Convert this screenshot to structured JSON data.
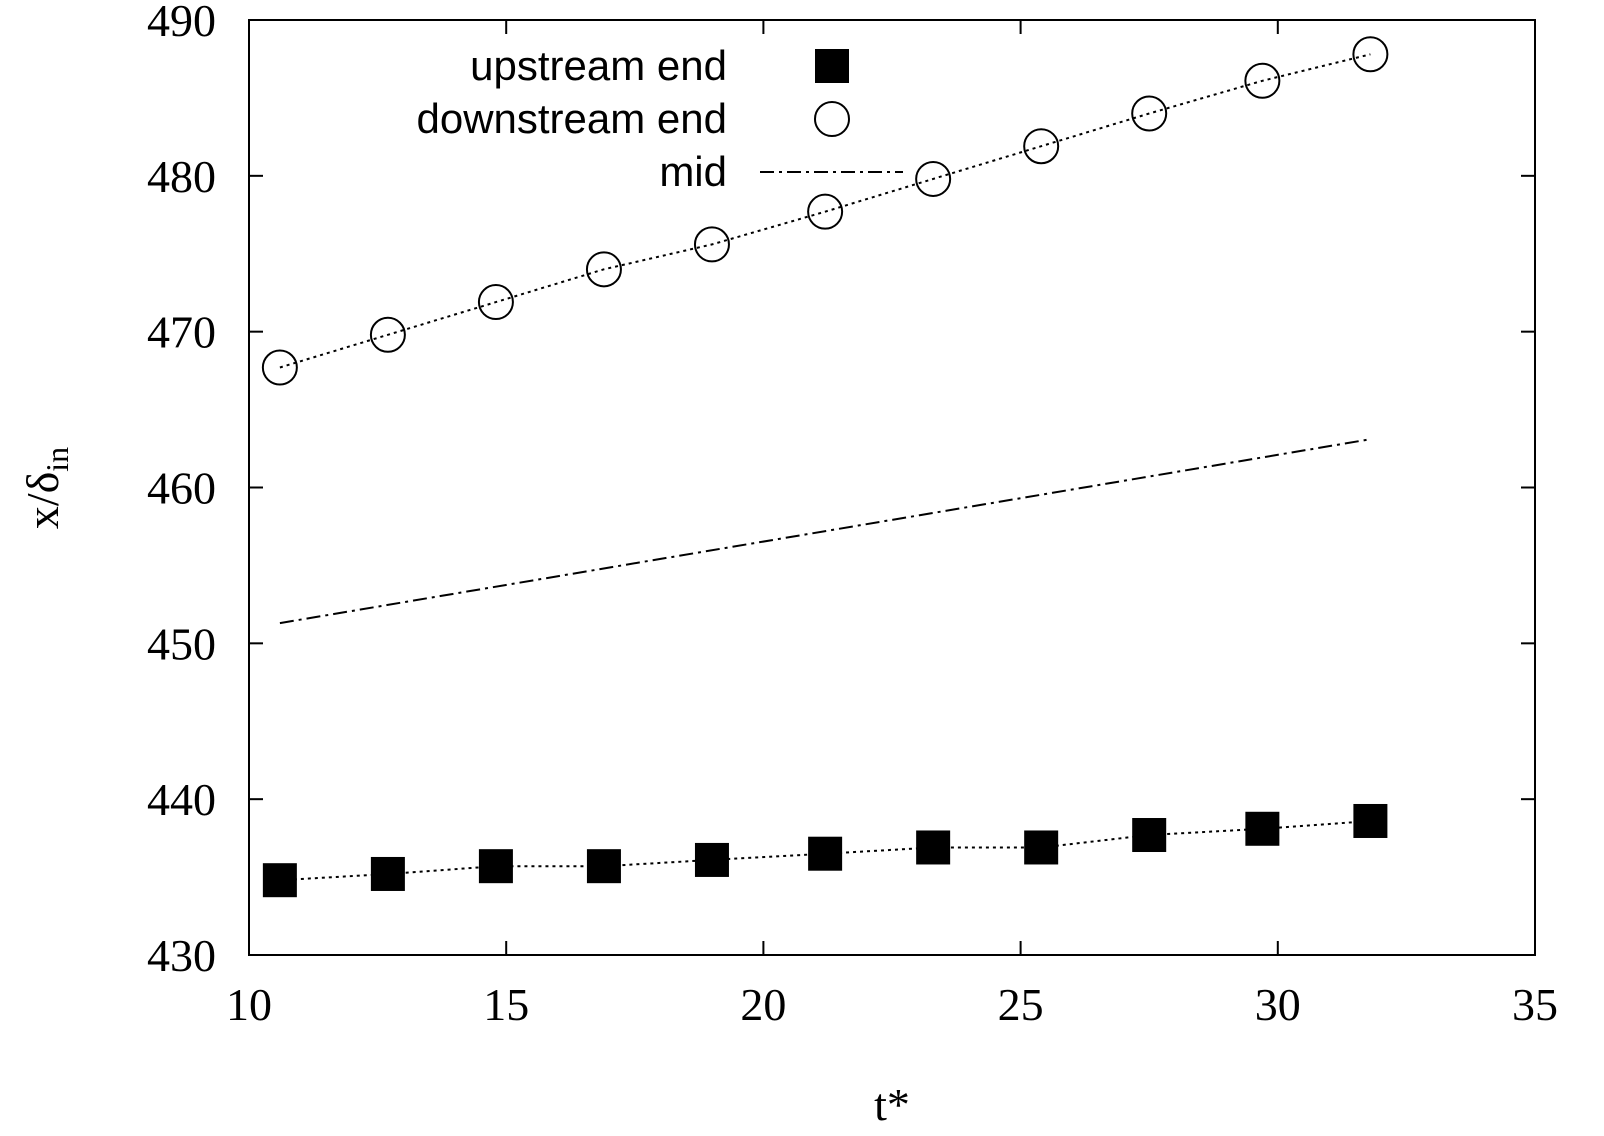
{
  "chart_data": {
    "type": "line",
    "title": "",
    "xlabel": "t*",
    "ylabel": "x/δin",
    "ylabel_main": "x/δ",
    "ylabel_sub": "in",
    "xlim": [
      10,
      35
    ],
    "ylim": [
      430,
      490
    ],
    "xticks": [
      10,
      15,
      20,
      25,
      30,
      35
    ],
    "yticks": [
      430,
      440,
      450,
      460,
      470,
      480,
      490
    ],
    "grid": false,
    "legend_position": "top-right",
    "series": [
      {
        "name": "upstream end",
        "style": "filled-square",
        "line": "dotted",
        "color": "#000000",
        "x": [
          10.6,
          12.7,
          14.8,
          16.9,
          19.0,
          21.2,
          23.3,
          25.4,
          27.5,
          29.7,
          31.8
        ],
        "y": [
          434.8,
          435.2,
          435.7,
          435.7,
          436.1,
          436.5,
          436.9,
          436.9,
          437.7,
          438.1,
          438.6
        ]
      },
      {
        "name": "downstream end",
        "style": "open-circle",
        "line": "dotted",
        "color": "#000000",
        "x": [
          10.6,
          12.7,
          14.8,
          16.9,
          19.0,
          21.2,
          23.3,
          25.4,
          27.5,
          29.7,
          31.8
        ],
        "y": [
          467.7,
          469.8,
          471.9,
          474.0,
          475.6,
          477.7,
          479.8,
          481.9,
          484.0,
          486.1,
          487.8
        ]
      },
      {
        "name": "mid",
        "style": "line",
        "line": "dash-dot",
        "color": "#000000",
        "x": [
          10.6,
          31.8
        ],
        "y": [
          451.3,
          463.1
        ]
      }
    ]
  }
}
